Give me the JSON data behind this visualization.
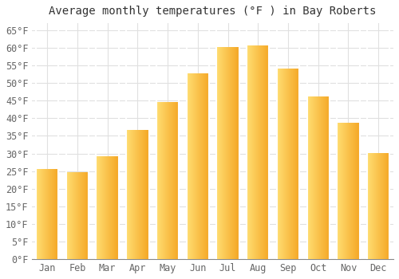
{
  "title": "Average monthly temperatures (°F ) in Bay Roberts",
  "months": [
    "Jan",
    "Feb",
    "Mar",
    "Apr",
    "May",
    "Jun",
    "Jul",
    "Aug",
    "Sep",
    "Oct",
    "Nov",
    "Dec"
  ],
  "values": [
    25.5,
    24.5,
    29.0,
    36.5,
    44.5,
    52.5,
    60.0,
    60.5,
    54.0,
    46.0,
    38.5,
    30.0
  ],
  "bar_color_left": "#FFD966",
  "bar_color_right": "#F5A623",
  "ylim": [
    0,
    67
  ],
  "yticks": [
    0,
    5,
    10,
    15,
    20,
    25,
    30,
    35,
    40,
    45,
    50,
    55,
    60,
    65
  ],
  "ytick_labels": [
    "0°F",
    "5°F",
    "10°F",
    "15°F",
    "20°F",
    "25°F",
    "30°F",
    "35°F",
    "40°F",
    "45°F",
    "50°F",
    "55°F",
    "60°F",
    "65°F"
  ],
  "bg_color": "#ffffff",
  "grid_color": "#e0e0e0",
  "title_fontsize": 10,
  "tick_fontsize": 8.5,
  "font_family": "monospace"
}
